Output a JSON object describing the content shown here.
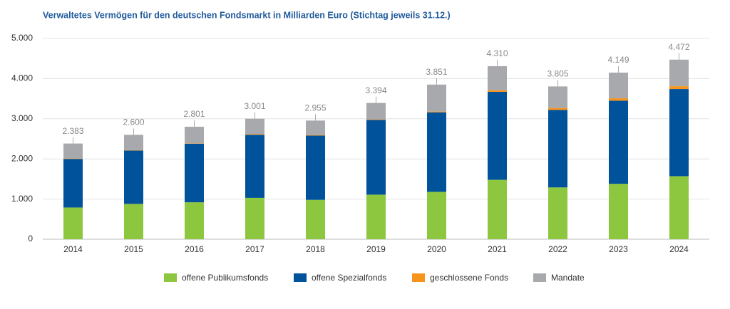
{
  "chart_data": {
    "type": "stacked_bar",
    "title": "Verwaltetes Vermögen für den deutschen Fondsmarkt in Milliarden Euro (Stichtag jeweils 31.12.)",
    "categories": [
      "2014",
      "2015",
      "2016",
      "2017",
      "2018",
      "2019",
      "2020",
      "2021",
      "2022",
      "2023",
      "2024"
    ],
    "series": [
      {
        "name": "offene Publikumsfonds",
        "color": "#8dc63f",
        "values": [
          790,
          880,
          920,
          1030,
          980,
          1110,
          1180,
          1480,
          1290,
          1380,
          1570
        ]
      },
      {
        "name": "offene Spezialfonds",
        "color": "#00529b",
        "values": [
          1210,
          1330,
          1460,
          1570,
          1600,
          1860,
          1980,
          2190,
          1930,
          2070,
          2170
        ]
      },
      {
        "name": "geschlossene Fonds",
        "color": "#f7941d",
        "values": [
          10,
          10,
          10,
          15,
          15,
          15,
          20,
          40,
          50,
          60,
          70
        ]
      },
      {
        "name": "Mandate",
        "color": "#a7a9ac",
        "values": [
          373,
          380,
          411,
          386,
          360,
          409,
          671,
          600,
          535,
          639,
          662
        ]
      }
    ],
    "totals": {
      "values": [
        2383,
        2600,
        2801,
        3001,
        2955,
        3394,
        3851,
        4310,
        3805,
        4149,
        4472
      ],
      "value_labels": [
        "2.383",
        "2.600",
        "2.801",
        "3.001",
        "2.955",
        "3.394",
        "3.851",
        "4.310",
        "3.805",
        "4.149",
        "4.472"
      ]
    },
    "ylim": [
      0,
      5000
    ],
    "yticks": [
      0,
      {
        "value": 1000,
        "label": "1.000"
      },
      {
        "value": 2000,
        "label": "2.000"
      },
      {
        "value": 3000,
        "label": "3.000"
      },
      {
        "value": 4000,
        "label": "4.000"
      },
      {
        "value": 5000,
        "label": "5.000"
      }
    ],
    "grid": true
  }
}
